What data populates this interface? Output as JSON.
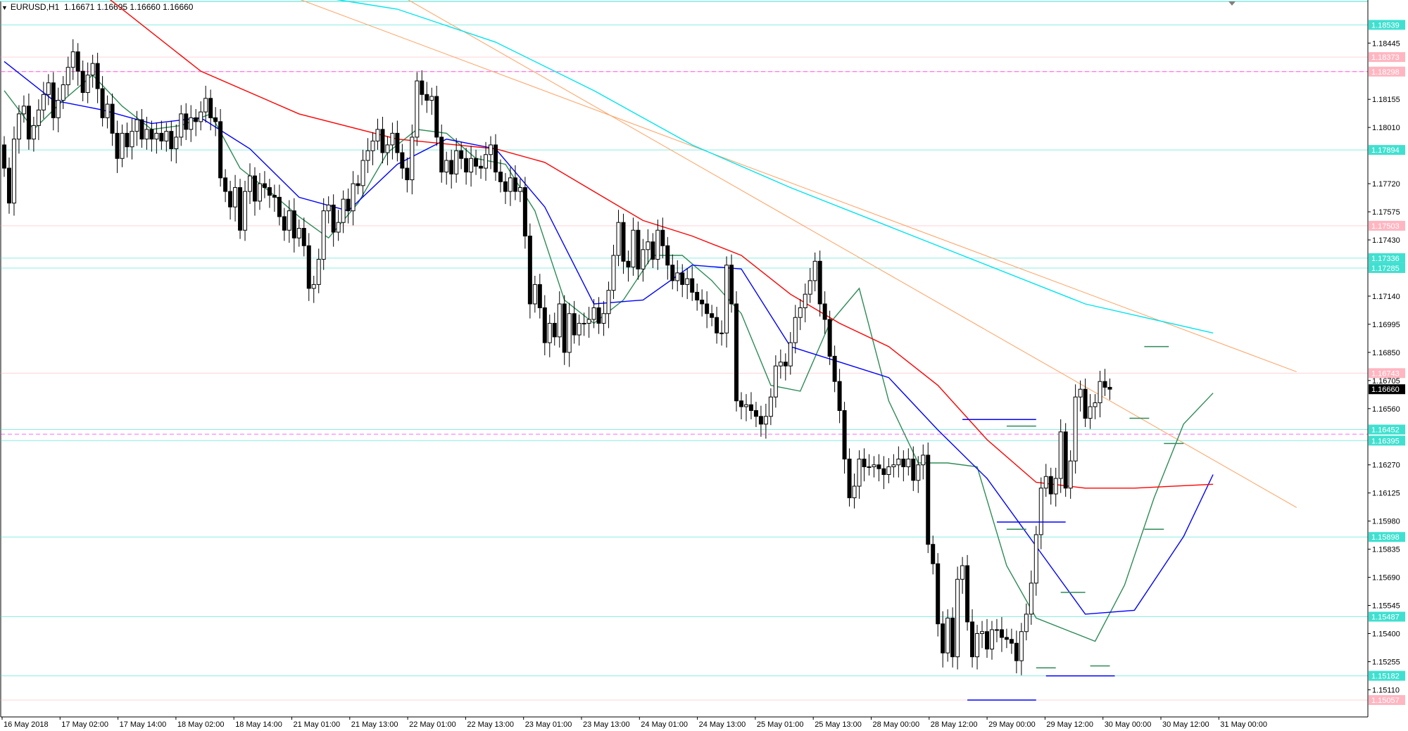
{
  "header": {
    "symbol": "EURUSD,H1",
    "ohlc": "1.16671 1.16695 1.16660 1.16660"
  },
  "colors": {
    "candle": "#000000",
    "ma_green": "#2e8b57",
    "ma_blue": "#0000ff",
    "ma_red": "#ff0000",
    "ma_cyan": "#00e5ee",
    "trend_orange": "#ffa060",
    "level_cyan": "#40e0d0",
    "level_pink": "#ffb6c1",
    "level_magenta_dash": "#ff00ff",
    "current_price_bg": "#000000"
  },
  "chart_data": {
    "type": "candlestick",
    "ylim": [
      1.1497,
      1.1866
    ],
    "x_tick_labels": [
      "16 May 2018",
      "17 May 02:00",
      "17 May 14:00",
      "18 May 02:00",
      "18 May 14:00",
      "21 May 01:00",
      "21 May 13:00",
      "22 May 01:00",
      "22 May 13:00",
      "23 May 01:00",
      "23 May 13:00",
      "24 May 01:00",
      "24 May 13:00",
      "25 May 01:00",
      "25 May 13:00",
      "28 May 00:00",
      "28 May 12:00",
      "29 May 00:00",
      "29 May 12:00",
      "30 May 00:00",
      "30 May 12:00",
      "31 May 00:00"
    ],
    "y_tick_labels": [
      "1.18445",
      "1.18155",
      "1.18010",
      "1.17720",
      "1.17575",
      "1.17430",
      "1.17140",
      "1.16995",
      "1.16850",
      "1.16705",
      "1.16560",
      "1.16270",
      "1.16125",
      "1.15980",
      "1.15835",
      "1.15690",
      "1.15545",
      "1.15400",
      "1.15255",
      "1.15110"
    ],
    "current_price": "1.16660",
    "level_labels": [
      {
        "label": "1.18539",
        "value": 1.18539,
        "kind": "cyan"
      },
      {
        "label": "1.18373",
        "value": 1.18373,
        "kind": "pink"
      },
      {
        "label": "1.18298",
        "value": 1.18298,
        "kind": "pink"
      },
      {
        "label": "1.17894",
        "value": 1.17894,
        "kind": "cyan"
      },
      {
        "label": "1.17503",
        "value": 1.17503,
        "kind": "pink"
      },
      {
        "label": "1.17336",
        "value": 1.17336,
        "kind": "cyan"
      },
      {
        "label": "1.17285",
        "value": 1.17285,
        "kind": "cyan"
      },
      {
        "label": "1.16743",
        "value": 1.16743,
        "kind": "pink"
      },
      {
        "label": "1.16452",
        "value": 1.16452,
        "kind": "cyan"
      },
      {
        "label": "1.16395",
        "value": 1.16395,
        "kind": "cyan"
      },
      {
        "label": "1.15898",
        "value": 1.15898,
        "kind": "cyan"
      },
      {
        "label": "1.15487",
        "value": 1.15487,
        "kind": "cyan"
      },
      {
        "label": "1.15182",
        "value": 1.15182,
        "kind": "cyan"
      },
      {
        "label": "1.15057",
        "value": 1.15057,
        "kind": "pink"
      }
    ],
    "magenta_dashed_levels": [
      1.18298,
      1.16428
    ],
    "series": [
      {
        "values": [
          1.1792,
          1.178,
          1.1762,
          1.1795,
          1.1808,
          1.1812,
          1.1795,
          1.1802,
          1.181,
          1.1818,
          1.1824,
          1.1806,
          1.1815,
          1.1823,
          1.1832,
          1.184,
          1.183,
          1.1819,
          1.1828,
          1.1834,
          1.1821,
          1.1806,
          1.1813,
          1.1798,
          1.1785,
          1.1798,
          1.1791,
          1.1799,
          1.1805,
          1.1795,
          1.18,
          1.1795,
          1.1798,
          1.1794,
          1.1799,
          1.179,
          1.1796,
          1.1808,
          1.18,
          1.1806,
          1.1804,
          1.1809,
          1.1816,
          1.1806,
          1.1804,
          1.1775,
          1.1768,
          1.176,
          1.177,
          1.1748,
          1.1768,
          1.1776,
          1.1763,
          1.1772,
          1.177,
          1.1766,
          1.1765,
          1.1755,
          1.1748,
          1.1758,
          1.1744,
          1.1749,
          1.174,
          1.1718,
          1.172,
          1.1733,
          1.1758,
          1.1761,
          1.1747,
          1.1752,
          1.1764,
          1.1758,
          1.1772,
          1.1771,
          1.1784,
          1.1789,
          1.1794,
          1.18,
          1.1788,
          1.1792,
          1.1798,
          1.1788,
          1.178,
          1.1774,
          1.1796,
          1.1825,
          1.1818,
          1.1815,
          1.1817,
          1.1796,
          1.1778,
          1.1784,
          1.1777,
          1.1789,
          1.1785,
          1.1778,
          1.1785,
          1.1781,
          1.178,
          1.1787,
          1.1792,
          1.1778,
          1.1773,
          1.1768,
          1.1775,
          1.1768,
          1.177,
          1.1745,
          1.171,
          1.172,
          1.1708,
          1.169,
          1.17,
          1.1693,
          1.171,
          1.1685,
          1.1705,
          1.1694,
          1.17,
          1.17,
          1.1702,
          1.1708,
          1.17,
          1.1705,
          1.1717,
          1.1735,
          1.1752,
          1.1732,
          1.1729,
          1.1748,
          1.1728,
          1.1738,
          1.1742,
          1.1733,
          1.1748,
          1.174,
          1.173,
          1.1722,
          1.1726,
          1.172,
          1.1723,
          1.1716,
          1.1712,
          1.171,
          1.1705,
          1.1703,
          1.1695,
          1.1695,
          1.173,
          1.171,
          1.166,
          1.1657,
          1.1658,
          1.1655,
          1.1652,
          1.1648,
          1.1652,
          1.1662,
          1.1678,
          1.168,
          1.1678,
          1.169,
          1.1703,
          1.1708,
          1.1715,
          1.1722,
          1.1732,
          1.171,
          1.1702,
          1.1683,
          1.167,
          1.1655,
          1.163,
          1.161,
          1.1616,
          1.163,
          1.1626,
          1.1626,
          1.1627,
          1.1625,
          1.1622,
          1.1626,
          1.1627,
          1.163,
          1.1626,
          1.163,
          1.1619,
          1.1627,
          1.1632,
          1.1586,
          1.1576,
          1.1545,
          1.153,
          1.1548,
          1.1528,
          1.1568,
          1.1575,
          1.1546,
          1.1528,
          1.154,
          1.1541,
          1.1532,
          1.1542,
          1.1542,
          1.1538,
          1.1537,
          1.1535,
          1.1526,
          1.1541,
          1.155,
          1.1566,
          1.1591,
          1.1615,
          1.1621,
          1.1612,
          1.162,
          1.1644,
          1.1615,
          1.1629,
          1.1662,
          1.1666,
          1.1651,
          1.1657,
          1.1659,
          1.167,
          1.1667
        ],
        "role": "open"
      },
      {
        "values": [
          1.178,
          1.1762,
          1.1795,
          1.1808,
          1.1812,
          1.1795,
          1.1802,
          1.181,
          1.1818,
          1.1824,
          1.1806,
          1.1815,
          1.1823,
          1.1832,
          1.184,
          1.183,
          1.1819,
          1.1828,
          1.1834,
          1.1821,
          1.1806,
          1.1813,
          1.1798,
          1.1785,
          1.1798,
          1.1791,
          1.1799,
          1.1805,
          1.1795,
          1.18,
          1.1795,
          1.1798,
          1.1794,
          1.1799,
          1.179,
          1.1796,
          1.1808,
          1.18,
          1.1806,
          1.1804,
          1.1809,
          1.1816,
          1.1806,
          1.1804,
          1.1775,
          1.1768,
          1.176,
          1.177,
          1.1748,
          1.1768,
          1.1776,
          1.1763,
          1.1772,
          1.177,
          1.1766,
          1.1765,
          1.1755,
          1.1748,
          1.1758,
          1.1744,
          1.1749,
          1.174,
          1.1718,
          1.172,
          1.1733,
          1.1758,
          1.1761,
          1.1747,
          1.1752,
          1.1764,
          1.1758,
          1.1772,
          1.1771,
          1.1784,
          1.1789,
          1.1794,
          1.18,
          1.1788,
          1.1792,
          1.1798,
          1.1788,
          1.178,
          1.1774,
          1.1796,
          1.1825,
          1.1818,
          1.1815,
          1.1817,
          1.1796,
          1.1778,
          1.1784,
          1.1777,
          1.1789,
          1.1785,
          1.1778,
          1.1785,
          1.1781,
          1.178,
          1.1787,
          1.1792,
          1.1778,
          1.1773,
          1.1768,
          1.1775,
          1.1768,
          1.177,
          1.1745,
          1.171,
          1.172,
          1.1708,
          1.169,
          1.17,
          1.1693,
          1.171,
          1.1685,
          1.1705,
          1.1694,
          1.17,
          1.17,
          1.1702,
          1.1708,
          1.17,
          1.1705,
          1.1717,
          1.1735,
          1.1752,
          1.1732,
          1.1729,
          1.1748,
          1.1728,
          1.1738,
          1.1742,
          1.1733,
          1.1748,
          1.174,
          1.173,
          1.1722,
          1.1726,
          1.172,
          1.1723,
          1.1716,
          1.1712,
          1.171,
          1.1705,
          1.1703,
          1.1695,
          1.1695,
          1.173,
          1.171,
          1.166,
          1.1657,
          1.1658,
          1.1655,
          1.1652,
          1.1648,
          1.1652,
          1.1662,
          1.1678,
          1.168,
          1.1678,
          1.169,
          1.1703,
          1.1708,
          1.1715,
          1.1722,
          1.1732,
          1.171,
          1.1702,
          1.1683,
          1.167,
          1.1655,
          1.163,
          1.161,
          1.1616,
          1.163,
          1.1626,
          1.1626,
          1.1627,
          1.1625,
          1.1622,
          1.1626,
          1.1627,
          1.163,
          1.1626,
          1.163,
          1.1619,
          1.1627,
          1.1632,
          1.1586,
          1.1576,
          1.1545,
          1.153,
          1.1548,
          1.1528,
          1.1568,
          1.1575,
          1.1546,
          1.1528,
          1.154,
          1.1541,
          1.1532,
          1.1542,
          1.1542,
          1.1538,
          1.1537,
          1.1535,
          1.1526,
          1.1541,
          1.155,
          1.1566,
          1.1591,
          1.1615,
          1.1621,
          1.1612,
          1.162,
          1.1644,
          1.1615,
          1.1629,
          1.1662,
          1.1666,
          1.1651,
          1.1657,
          1.1659,
          1.167,
          1.1667,
          1.1666
        ],
        "role": "close"
      }
    ],
    "ohlc_note": "",
    "moving_averages": [
      {
        "color_key": "ma_green",
        "points": [
          [
            0,
            1.182
          ],
          [
            6,
            1.18
          ],
          [
            12,
            1.1815
          ],
          [
            18,
            1.1828
          ],
          [
            24,
            1.1812
          ],
          [
            30,
            1.18
          ],
          [
            36,
            1.1802
          ],
          [
            42,
            1.1808
          ],
          [
            48,
            1.178
          ],
          [
            54,
            1.1768
          ],
          [
            60,
            1.1755
          ],
          [
            66,
            1.1744
          ],
          [
            72,
            1.1762
          ],
          [
            78,
            1.1788
          ],
          [
            84,
            1.18
          ],
          [
            90,
            1.1798
          ],
          [
            96,
            1.1785
          ],
          [
            102,
            1.1782
          ],
          [
            108,
            1.1758
          ],
          [
            114,
            1.1712
          ],
          [
            120,
            1.17
          ],
          [
            126,
            1.1712
          ],
          [
            132,
            1.1735
          ],
          [
            138,
            1.1735
          ],
          [
            144,
            1.1722
          ],
          [
            150,
            1.1705
          ],
          [
            156,
            1.1668
          ],
          [
            162,
            1.1665
          ],
          [
            168,
            1.17
          ],
          [
            174,
            1.1718
          ],
          [
            180,
            1.166
          ],
          [
            186,
            1.1628
          ],
          [
            192,
            1.1628
          ],
          [
            198,
            1.1626
          ],
          [
            204,
            1.1575
          ],
          [
            210,
            1.1548
          ],
          [
            216,
            1.1542
          ],
          [
            222,
            1.1536
          ],
          [
            228,
            1.1565
          ],
          [
            234,
            1.161
          ],
          [
            240,
            1.1648
          ],
          [
            246,
            1.1664
          ]
        ]
      },
      {
        "color_key": "ma_blue",
        "points": [
          [
            0,
            1.1835
          ],
          [
            10,
            1.1815
          ],
          [
            20,
            1.181
          ],
          [
            30,
            1.1803
          ],
          [
            40,
            1.1806
          ],
          [
            50,
            1.179
          ],
          [
            60,
            1.1765
          ],
          [
            70,
            1.1758
          ],
          [
            80,
            1.1782
          ],
          [
            90,
            1.1795
          ],
          [
            100,
            1.179
          ],
          [
            110,
            1.176
          ],
          [
            120,
            1.171
          ],
          [
            130,
            1.1712
          ],
          [
            140,
            1.173
          ],
          [
            150,
            1.1728
          ],
          [
            160,
            1.1688
          ],
          [
            170,
            1.168
          ],
          [
            180,
            1.1672
          ],
          [
            190,
            1.1645
          ],
          [
            200,
            1.162
          ],
          [
            210,
            1.1585
          ],
          [
            220,
            1.155
          ],
          [
            230,
            1.1552
          ],
          [
            240,
            1.159
          ],
          [
            246,
            1.1622
          ]
        ]
      },
      {
        "color_key": "ma_red",
        "points": [
          [
            0,
            1.19
          ],
          [
            20,
            1.187
          ],
          [
            40,
            1.183
          ],
          [
            60,
            1.1808
          ],
          [
            80,
            1.1795
          ],
          [
            100,
            1.179
          ],
          [
            110,
            1.1783
          ],
          [
            120,
            1.1768
          ],
          [
            130,
            1.1753
          ],
          [
            140,
            1.1745
          ],
          [
            150,
            1.1735
          ],
          [
            160,
            1.1715
          ],
          [
            170,
            1.17
          ],
          [
            180,
            1.1688
          ],
          [
            190,
            1.1668
          ],
          [
            200,
            1.164
          ],
          [
            210,
            1.1618
          ],
          [
            220,
            1.1615
          ],
          [
            230,
            1.1615
          ],
          [
            246,
            1.1617
          ]
        ]
      },
      {
        "color_key": "ma_cyan",
        "points": [
          [
            60,
            1.187
          ],
          [
            80,
            1.1862
          ],
          [
            100,
            1.1845
          ],
          [
            120,
            1.182
          ],
          [
            140,
            1.1792
          ],
          [
            160,
            1.177
          ],
          [
            180,
            1.175
          ],
          [
            200,
            1.173
          ],
          [
            220,
            1.171
          ],
          [
            246,
            1.1695
          ]
        ]
      }
    ],
    "trend_lines": [
      {
        "color_key": "trend_orange",
        "from": [
          57,
          1.187
        ],
        "to": [
          263,
          1.1675
        ]
      },
      {
        "color_key": "trend_orange",
        "from": [
          80,
          1.187
        ],
        "to": [
          263,
          1.1605
        ]
      }
    ],
    "horizontal_marks": [
      {
        "color_key": "ma_blue",
        "from": 195,
        "to": 210,
        "value": 1.16504
      },
      {
        "color_key": "ma_blue",
        "from": 202,
        "to": 216,
        "value": 1.15975
      },
      {
        "color_key": "ma_blue",
        "from": 196,
        "to": 210,
        "value": 1.15057
      },
      {
        "color_key": "ma_blue",
        "from": 212,
        "to": 226,
        "value": 1.15182
      },
      {
        "color_key": "ma_green",
        "from": 204,
        "to": 210,
        "value": 1.1647
      },
      {
        "color_key": "ma_green",
        "from": 204,
        "to": 208,
        "value": 1.15938
      },
      {
        "color_key": "ma_green",
        "from": 215,
        "to": 220,
        "value": 1.15612
      },
      {
        "color_key": "ma_green",
        "from": 210,
        "to": 214,
        "value": 1.15223
      },
      {
        "color_key": "ma_green",
        "from": 221,
        "to": 225,
        "value": 1.15233
      },
      {
        "color_key": "ma_green",
        "from": 232,
        "to": 237,
        "value": 1.1688
      },
      {
        "color_key": "ma_green",
        "from": 229,
        "to": 233,
        "value": 1.1651
      },
      {
        "color_key": "ma_green",
        "from": 232,
        "to": 236,
        "value": 1.15938
      },
      {
        "color_key": "ma_green",
        "from": 236,
        "to": 240,
        "value": 1.1638
      }
    ]
  }
}
